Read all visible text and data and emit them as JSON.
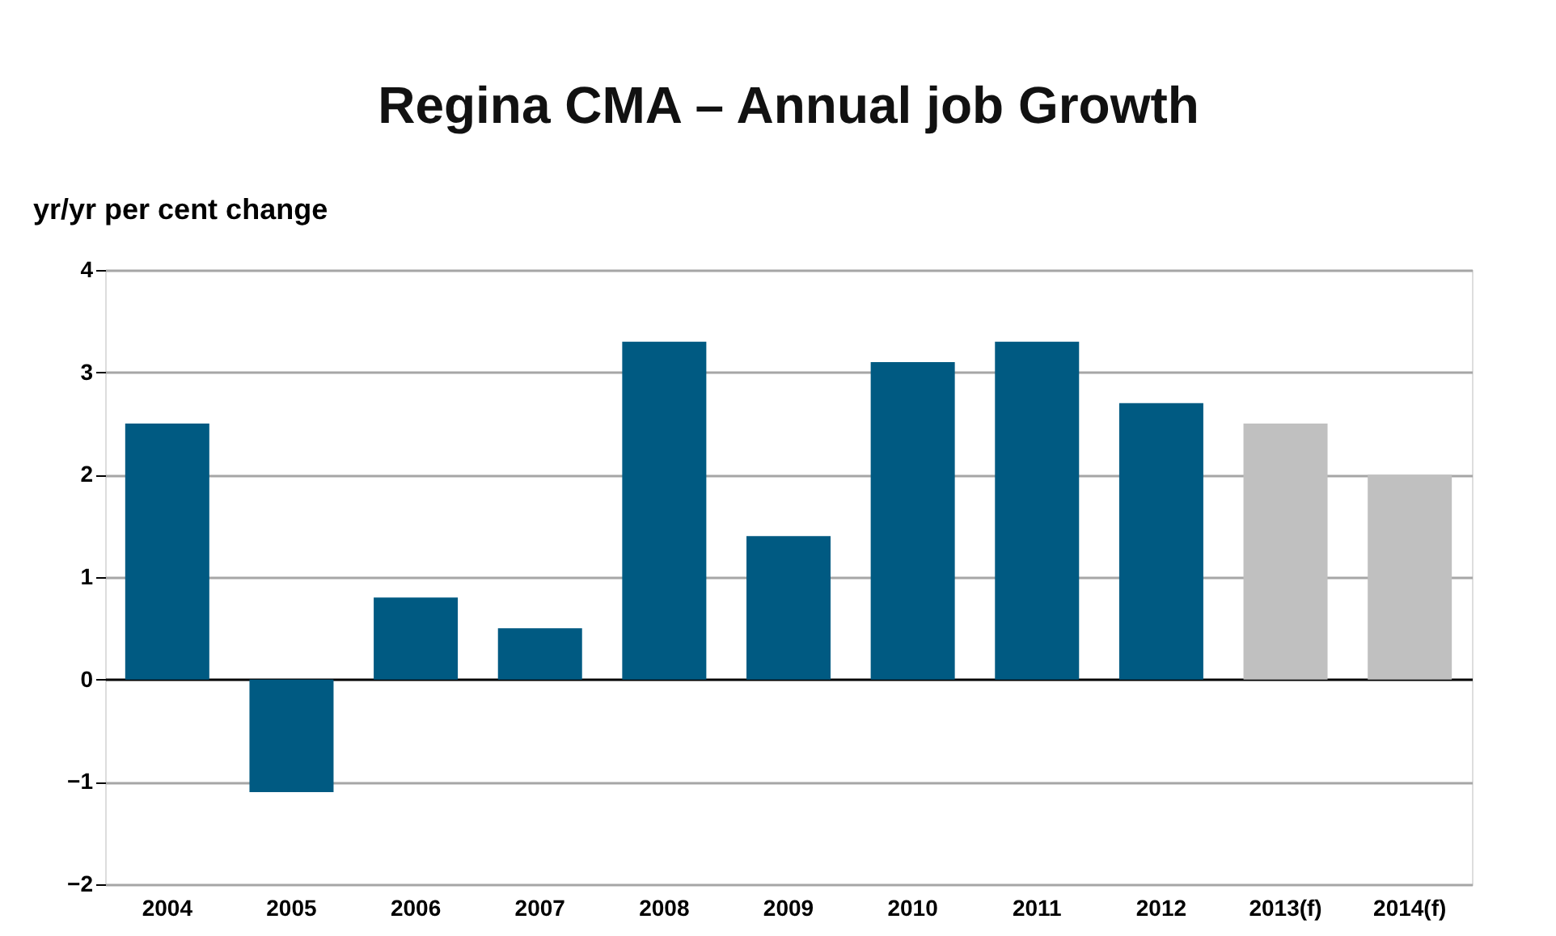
{
  "chart_data": {
    "type": "bar",
    "title": "Regina CMA – Annual job Growth",
    "ylabel": "yr/yr per cent change",
    "categories": [
      "2004",
      "2005",
      "2006",
      "2007",
      "2008",
      "2009",
      "2010",
      "2011",
      "2012",
      "2013(f)",
      "2014(f)"
    ],
    "values": [
      2.5,
      -1.1,
      0.8,
      0.5,
      3.3,
      1.4,
      3.1,
      3.3,
      2.7,
      2.5,
      2.0
    ],
    "colors": [
      "#005a82",
      "#005a82",
      "#005a82",
      "#005a82",
      "#005a82",
      "#005a82",
      "#005a82",
      "#005a82",
      "#005a82",
      "#c0c0c0",
      "#c0c0c0"
    ],
    "ylim": [
      -2,
      4
    ],
    "yticks": [
      -2,
      -1,
      0,
      1,
      2,
      3,
      4
    ],
    "grid": "y"
  }
}
